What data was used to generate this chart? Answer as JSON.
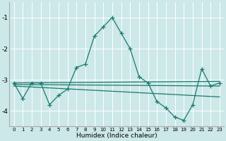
{
  "xlabel": "Humidex (Indice chaleur)",
  "bg_color": "#cce8e8",
  "grid_color": "#ffffff",
  "line_color": "#1a7a6e",
  "xlim": [
    -0.5,
    23.5
  ],
  "ylim": [
    -4.5,
    -0.5
  ],
  "yticks": [
    -4,
    -3,
    -2,
    -1
  ],
  "xticks": [
    0,
    1,
    2,
    3,
    4,
    5,
    6,
    7,
    8,
    9,
    10,
    11,
    12,
    13,
    14,
    15,
    16,
    17,
    18,
    19,
    20,
    21,
    22,
    23
  ],
  "series": [
    {
      "x": [
        0,
        1,
        2,
        3,
        4,
        5,
        6,
        7,
        8,
        9,
        10,
        11,
        12,
        13,
        14,
        15,
        16,
        17,
        18,
        19,
        20,
        21,
        22,
        23
      ],
      "y": [
        -3.1,
        -3.6,
        -3.1,
        -3.1,
        -3.8,
        -3.5,
        -3.3,
        -2.6,
        -2.5,
        -1.6,
        -1.3,
        -1.0,
        -1.5,
        -2.0,
        -2.9,
        -3.1,
        -3.7,
        -3.9,
        -4.2,
        -4.3,
        -3.8,
        -2.65,
        -3.2,
        -3.1
      ]
    },
    {
      "x": [
        0,
        23
      ],
      "y": [
        -3.1,
        -3.05
      ]
    },
    {
      "x": [
        0,
        23
      ],
      "y": [
        -3.15,
        -3.2
      ]
    },
    {
      "x": [
        0,
        23
      ],
      "y": [
        -3.2,
        -3.55
      ]
    }
  ]
}
